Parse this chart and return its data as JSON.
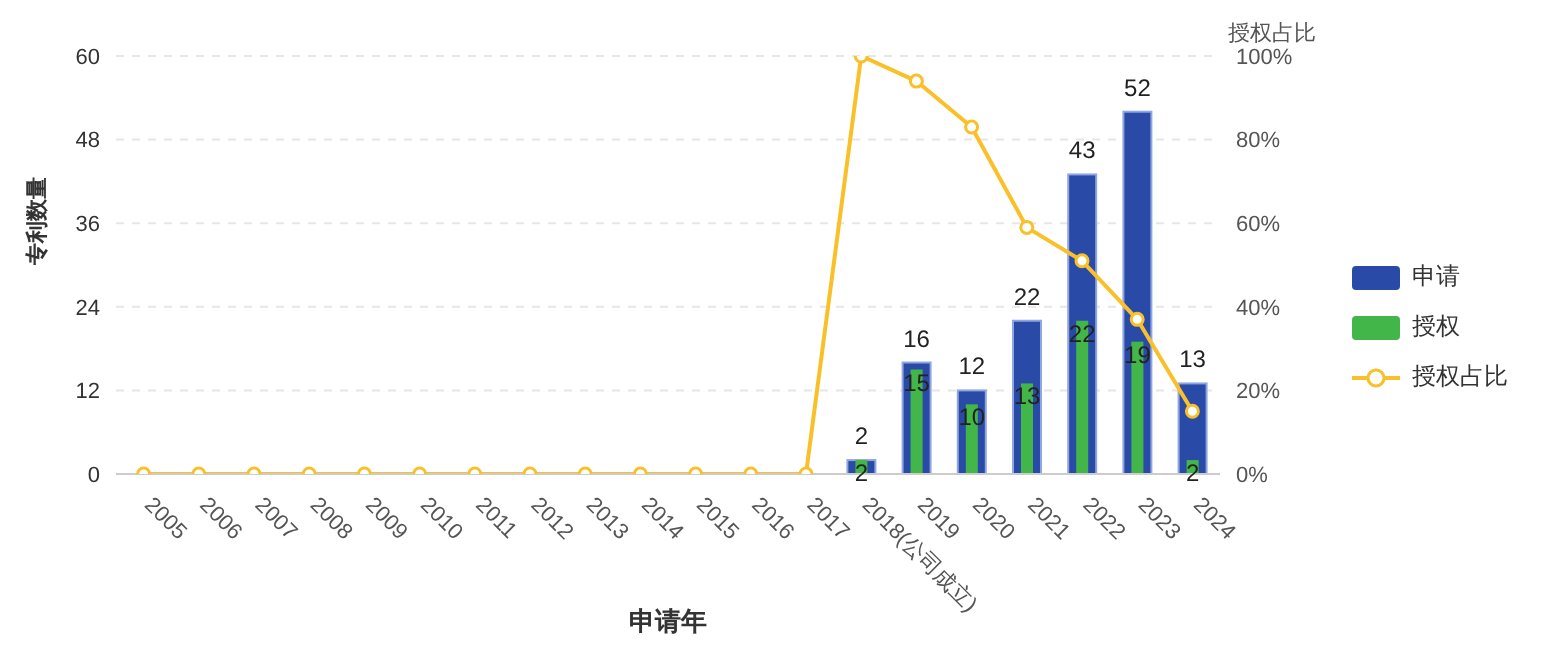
{
  "chart_data": {
    "type": "bar",
    "xlabel": "申请年",
    "ylabel": "专利数量",
    "y2label": "授权占比",
    "categories": [
      "2005",
      "2006",
      "2007",
      "2008",
      "2009",
      "2010",
      "2011",
      "2012",
      "2013",
      "2014",
      "2015",
      "2016",
      "2017",
      "2018(公司成立)",
      "2019",
      "2020",
      "2021",
      "2022",
      "2023",
      "2024"
    ],
    "series": [
      {
        "name": "申请",
        "color": "#2a4aa8",
        "values": [
          null,
          null,
          null,
          null,
          null,
          null,
          null,
          null,
          null,
          null,
          null,
          null,
          null,
          2,
          16,
          12,
          22,
          43,
          52,
          13
        ],
        "value_labels": [
          null,
          null,
          null,
          null,
          null,
          null,
          null,
          null,
          null,
          null,
          null,
          null,
          null,
          "2",
          "16",
          "12",
          "22",
          "43",
          "52",
          "13"
        ]
      },
      {
        "name": "授权",
        "color": "#43b649",
        "values": [
          null,
          null,
          null,
          null,
          null,
          null,
          null,
          null,
          null,
          null,
          null,
          null,
          null,
          2,
          15,
          10,
          13,
          22,
          19,
          2
        ],
        "value_labels": [
          null,
          null,
          null,
          null,
          null,
          null,
          null,
          null,
          null,
          null,
          null,
          null,
          null,
          "2",
          "15",
          "10",
          "13",
          "22",
          "19",
          "2"
        ]
      },
      {
        "name": "授权占比",
        "type": "line",
        "axis": "y2",
        "color": "#f9c02a",
        "values": [
          0,
          0,
          0,
          0,
          0,
          0,
          0,
          0,
          0,
          0,
          0,
          0,
          0,
          100,
          94,
          83,
          59,
          51,
          37,
          15
        ]
      }
    ],
    "ylim": [
      0,
      60
    ],
    "yticks": [
      0,
      12,
      24,
      36,
      48,
      60
    ],
    "y2lim": [
      0,
      100
    ],
    "y2ticks": [
      {
        "value": 0,
        "label": "0%"
      },
      {
        "value": 20,
        "label": "20%"
      },
      {
        "value": 40,
        "label": "40%"
      },
      {
        "value": 60,
        "label": "60%"
      },
      {
        "value": 80,
        "label": "80%"
      },
      {
        "value": 100,
        "label": "100%"
      }
    ],
    "grid": "y",
    "legend": "right",
    "marker": "circle",
    "line_style": "solid"
  }
}
